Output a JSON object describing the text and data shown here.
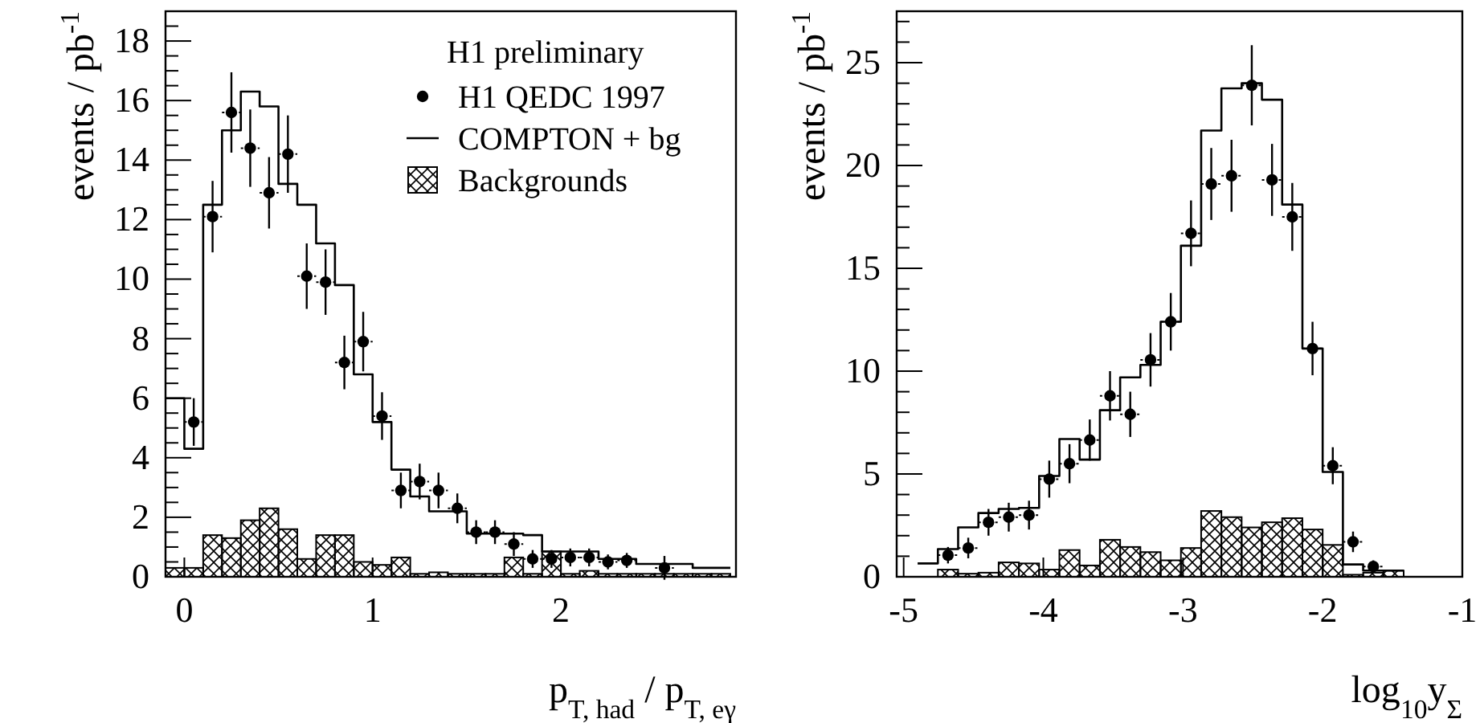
{
  "chart_data": [
    {
      "type": "step",
      "xlabel": "p$_{T, had}$ / p$_{T, eγ}$",
      "ylabel": "events / pb$^{-1}$",
      "legend": "top right",
      "legend_title": "H1 preliminary",
      "xlim": [
        -0.1,
        2.93
      ],
      "xticks": [
        0,
        1,
        2
      ],
      "ylim": [
        0,
        19
      ],
      "yticks": [
        0,
        {
          "value": 0.5,
          "label": null
        },
        {
          "value": 1,
          "label": null
        },
        {
          "value": 1.5,
          "label": null
        },
        2,
        {
          "value": 2.5,
          "label": null
        },
        {
          "value": 3,
          "label": null
        },
        {
          "value": 3.5,
          "label": null
        },
        4,
        {
          "value": 4.5,
          "label": null
        },
        {
          "value": 5,
          "label": null
        },
        {
          "value": 5.5,
          "label": null
        },
        6,
        {
          "value": 6.5,
          "label": null
        },
        {
          "value": 7,
          "label": null
        },
        {
          "value": 7.5,
          "label": null
        },
        8,
        {
          "value": 8.5,
          "label": null
        },
        {
          "value": 9,
          "label": null
        },
        {
          "value": 9.5,
          "label": null
        },
        10,
        {
          "value": 10.5,
          "label": null
        },
        {
          "value": 11,
          "label": null
        },
        {
          "value": 11.5,
          "label": null
        },
        12,
        {
          "value": 12.5,
          "label": null
        },
        {
          "value": 13,
          "label": null
        },
        {
          "value": 13.5,
          "label": null
        },
        14,
        {
          "value": 14.5,
          "label": null
        },
        {
          "value": 15,
          "label": null
        },
        {
          "value": 15.5,
          "label": null
        },
        16,
        {
          "value": 16.5,
          "label": null
        },
        {
          "value": 17,
          "label": null
        },
        {
          "value": 17.5,
          "label": null
        },
        18,
        {
          "value": 18.5,
          "label": null
        }
      ],
      "series": [
        {
          "name": "H1 QEDC 1997",
          "type": "scatter",
          "marker": "circle",
          "color": "#000000",
          "x": [
            0.05,
            0.15,
            0.25,
            0.35,
            0.45,
            0.55,
            0.65,
            0.75,
            0.85,
            0.95,
            1.05,
            1.15,
            1.25,
            1.35,
            1.45,
            1.55,
            1.65,
            1.75,
            1.85,
            1.95,
            2.05,
            2.15,
            2.25,
            2.35,
            2.55
          ],
          "values": [
            5.2,
            12.1,
            15.6,
            14.4,
            12.9,
            14.2,
            10.1,
            9.9,
            7.2,
            7.9,
            5.4,
            2.9,
            3.2,
            2.9,
            2.3,
            1.5,
            1.5,
            1.1,
            0.6,
            0.6,
            0.65,
            0.65,
            0.5,
            0.55,
            0.3
          ],
          "errors": [
            0.8,
            1.2,
            1.35,
            1.3,
            1.2,
            1.3,
            1.1,
            1.1,
            0.9,
            1.0,
            0.8,
            0.6,
            0.6,
            0.6,
            0.5,
            0.4,
            0.4,
            0.4,
            0.3,
            0.3,
            0.3,
            0.3,
            0.25,
            0.25,
            0.4
          ],
          "xerrors": [
            0.05,
            0.05,
            0.05,
            0.05,
            0.05,
            0.05,
            0.05,
            0.05,
            0.05,
            0.05,
            0.05,
            0.05,
            0.05,
            0.05,
            0.05,
            0.05,
            0.05,
            0.05,
            0.05,
            0.05,
            0.05,
            0.05,
            0.05,
            0.05,
            0.05
          ]
        },
        {
          "name": "COMPTON + bg",
          "color": "#000000",
          "x": [
            -0.1,
            0,
            0.1,
            0.2,
            0.3,
            0.4,
            0.5,
            0.6,
            0.7,
            0.8,
            0.9,
            1,
            1.1,
            1.2,
            1.3,
            1.4,
            1.5,
            1.6,
            1.7,
            1.8,
            1.9,
            2,
            2.1,
            2.2,
            2.3,
            2.4,
            2.5,
            2.6,
            2.7,
            2.8,
            2.9
          ],
          "values": [
            6.0,
            4.3,
            12.5,
            15.0,
            16.3,
            15.8,
            13.2,
            12.5,
            11.2,
            9.8,
            6.8,
            5.2,
            3.6,
            2.7,
            2.2,
            2.2,
            1.45,
            1.45,
            1.45,
            1.4,
            0.85,
            0.85,
            0.85,
            0.6,
            0.6,
            0.43,
            0.43,
            0.43,
            0.3,
            0.3,
            0.3
          ]
        },
        {
          "name": "Backgrounds",
          "type": "histogram",
          "color": "#000000",
          "bins": [
            -0.1,
            0,
            0.1,
            0.2,
            0.3,
            0.4,
            0.5,
            0.6,
            0.7,
            0.8,
            0.9,
            1,
            1.1,
            1.2,
            1.3,
            1.4,
            1.5,
            1.6,
            1.7,
            1.8,
            1.9,
            2,
            2.1,
            2.2,
            2.3,
            2.4,
            2.5,
            2.6,
            2.7,
            2.8,
            2.9
          ],
          "values": [
            0.3,
            0.3,
            1.4,
            1.3,
            1.9,
            2.3,
            1.6,
            0.6,
            1.4,
            1.4,
            0.5,
            0.4,
            0.65,
            0.1,
            0.15,
            0.1,
            0.1,
            0.1,
            0.65,
            0.1,
            0.85,
            0.1,
            0.2,
            0.1,
            0.1,
            0.1,
            0.1,
            0.1,
            0.1,
            0.1
          ]
        }
      ]
    },
    {
      "type": "step",
      "xlabel": "log$_{10}$y$_{Σ}$",
      "ylabel": "events / pb$^{-1}$",
      "xlim": [
        -5.05,
        -1
      ],
      "xticks": [
        -5,
        -4,
        -3,
        -2,
        -1
      ],
      "ylim": [
        0,
        27.5
      ],
      "yticks": [
        0,
        {
          "value": 1,
          "label": null
        },
        {
          "value": 2,
          "label": null
        },
        {
          "value": 3,
          "label": null
        },
        {
          "value": 4,
          "label": null
        },
        5,
        {
          "value": 6,
          "label": null
        },
        {
          "value": 7,
          "label": null
        },
        {
          "value": 8,
          "label": null
        },
        {
          "value": 9,
          "label": null
        },
        10,
        {
          "value": 11,
          "label": null
        },
        {
          "value": 12,
          "label": null
        },
        {
          "value": 13,
          "label": null
        },
        {
          "value": 14,
          "label": null
        },
        15,
        {
          "value": 16,
          "label": null
        },
        {
          "value": 17,
          "label": null
        },
        {
          "value": 18,
          "label": null
        },
        {
          "value": 19,
          "label": null
        },
        20,
        {
          "value": 21,
          "label": null
        },
        {
          "value": 22,
          "label": null
        },
        {
          "value": 23,
          "label": null
        },
        {
          "value": 24,
          "label": null
        },
        25,
        {
          "value": 26,
          "label": null
        },
        {
          "value": 27,
          "label": null
        }
      ],
      "series": [
        {
          "type": "scatter",
          "marker": "circle",
          "color": "#000000",
          "x": [
            -4.6825,
            -4.5375,
            -4.3925,
            -4.2475,
            -4.1025,
            -3.9575,
            -3.8125,
            -3.6675,
            -3.5225,
            -3.3775,
            -3.2325,
            -3.0875,
            -2.9425,
            -2.7975,
            -2.6525,
            -2.5075,
            -2.3625,
            -2.2175,
            -2.0725,
            -1.9275,
            -1.7825,
            -1.6375
          ],
          "values": [
            1.05,
            1.4,
            2.65,
            2.9,
            3.0,
            4.75,
            5.5,
            6.65,
            8.8,
            7.9,
            10.55,
            12.4,
            16.7,
            19.1,
            19.5,
            23.9,
            19.3,
            17.5,
            11.1,
            5.4,
            1.7,
            0.5
          ],
          "errors": [
            0.4,
            0.5,
            0.65,
            0.7,
            0.7,
            0.9,
            0.95,
            1.0,
            1.2,
            1.1,
            1.3,
            1.4,
            1.6,
            1.75,
            1.75,
            1.95,
            1.75,
            1.65,
            1.3,
            0.9,
            0.5,
            0.3
          ],
          "xerrors": [
            0.0725,
            0.0725,
            0.0725,
            0.0725,
            0.0725,
            0.0725,
            0.0725,
            0.0725,
            0.0725,
            0.0725,
            0.0725,
            0.0725,
            0.0725,
            0.0725,
            0.0725,
            0.0725,
            0.0725,
            0.0725,
            0.0725,
            0.0725,
            0.0725,
            0.0725
          ]
        },
        {
          "color": "#000000",
          "x": [
            -4.9,
            -4.755,
            -4.61,
            -4.465,
            -4.32,
            -4.175,
            -4.03,
            -3.885,
            -3.74,
            -3.595,
            -3.45,
            -3.305,
            -3.16,
            -3.015,
            -2.87,
            -2.725,
            -2.58,
            -2.435,
            -2.29,
            -2.145,
            -2.0,
            -1.855,
            -1.71,
            -1.565,
            -1.42
          ],
          "values": [
            0.65,
            1.35,
            2.4,
            3.1,
            3.3,
            3.35,
            4.9,
            6.7,
            5.7,
            8.1,
            9.7,
            10.3,
            12.4,
            16.1,
            21.7,
            23.75,
            24.0,
            23.2,
            18.1,
            11.1,
            5.1,
            0.6,
            0.3,
            0.3,
            0.3
          ]
        },
        {
          "type": "histogram",
          "color": "#000000",
          "bins": [
            -4.9,
            -4.755,
            -4.61,
            -4.465,
            -4.32,
            -4.175,
            -4.03,
            -3.885,
            -3.74,
            -3.595,
            -3.45,
            -3.305,
            -3.16,
            -3.015,
            -2.87,
            -2.725,
            -2.58,
            -2.435,
            -2.29,
            -2.145,
            -2.0,
            -1.855,
            -1.71,
            -1.565,
            -1.42
          ],
          "values": [
            0,
            0.35,
            0.15,
            0.2,
            0.7,
            0.65,
            0.35,
            1.3,
            0.55,
            1.8,
            1.45,
            1.2,
            0.8,
            1.4,
            3.2,
            2.9,
            2.4,
            2.65,
            2.85,
            2.3,
            1.55,
            0.1,
            0.2,
            0.3
          ]
        }
      ]
    }
  ]
}
